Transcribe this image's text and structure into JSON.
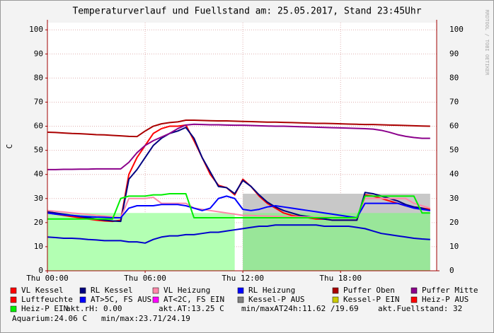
{
  "chart_data": {
    "type": "line",
    "title": "Temperaturverlauf und Fuellstand am: 25.05.2017, Stand 23:45Uhr",
    "y_label": "C",
    "watermark": "RRDTOOL / TOBI OETIKER",
    "xlim": [
      0,
      23.9
    ],
    "ylim": [
      0,
      103
    ],
    "xticks": [
      {
        "value": 0,
        "label": "Thu 00:00"
      },
      {
        "value": 6,
        "label": "Thu 06:00"
      },
      {
        "value": 12,
        "label": "Thu 12:00"
      },
      {
        "value": 18,
        "label": "Thu 18:00"
      }
    ],
    "yticks": [
      0,
      10,
      20,
      30,
      40,
      50,
      60,
      70,
      80,
      90,
      100
    ],
    "grid": true,
    "x": [
      0,
      0.5,
      1,
      1.5,
      2,
      2.5,
      3,
      3.5,
      4,
      4.5,
      5,
      5.5,
      6,
      6.5,
      7,
      7.5,
      8,
      8.5,
      9,
      9.5,
      10,
      10.5,
      11,
      11.5,
      12,
      12.5,
      13,
      13.5,
      14,
      14.5,
      15,
      15.5,
      16,
      16.5,
      17,
      17.5,
      18,
      18.5,
      19,
      19.5,
      20,
      20.5,
      21,
      21.5,
      22,
      22.5,
      23,
      23.5
    ],
    "series": [
      {
        "name": "VL Kessel",
        "color": "#ff0000",
        "values": [
          24,
          23.5,
          23,
          22.5,
          22,
          21.5,
          21,
          20.7,
          20.5,
          21,
          40,
          47,
          52,
          57,
          59,
          60,
          60,
          60.5,
          54,
          47,
          40,
          35.5,
          34.5,
          31.5,
          38,
          35,
          31,
          28,
          26,
          24,
          23,
          22.5,
          22,
          21.5,
          21.5,
          21,
          21,
          21,
          21,
          31.5,
          31,
          30,
          29,
          28,
          27,
          26.5,
          26,
          25.5
        ]
      },
      {
        "name": "RL Kessel",
        "color": "#000080",
        "values": [
          24.5,
          24,
          23.5,
          23,
          22.5,
          22,
          21.5,
          21,
          20.7,
          20.5,
          38,
          42,
          47,
          52,
          55,
          57,
          58,
          59.5,
          55,
          47,
          41,
          35,
          34.5,
          32,
          37.5,
          35,
          31.5,
          28.5,
          26.5,
          25,
          24,
          23,
          22.5,
          22,
          21.5,
          21,
          21,
          21,
          21,
          32.5,
          32,
          31,
          30,
          29,
          27.5,
          26.5,
          26,
          25
        ]
      },
      {
        "name": "VL Heizung",
        "color": "#ff88aa",
        "values": [
          25,
          24.7,
          24.4,
          24,
          23.7,
          23.4,
          23,
          22.7,
          22.4,
          22,
          30,
          30,
          30,
          30.5,
          28,
          28,
          28,
          28,
          26,
          25.5,
          25,
          24.5,
          24,
          23.5,
          23,
          23,
          22.8,
          22.7,
          22.6,
          22.5,
          22.5,
          22.4,
          22.3,
          22.2,
          22.2,
          22.1,
          22.1,
          22,
          22,
          30,
          30,
          30,
          30,
          30,
          30,
          28,
          27,
          26
        ]
      },
      {
        "name": "RL Heizung",
        "color": "#0000ff",
        "values": [
          24,
          23.5,
          23.2,
          23,
          22.7,
          22.5,
          22.3,
          22.2,
          22,
          22,
          26,
          27,
          27,
          27,
          27.5,
          27.5,
          27.5,
          27,
          26,
          25,
          26,
          30,
          31,
          30,
          25.5,
          25,
          25.5,
          26.5,
          27,
          26.5,
          26,
          25.5,
          25,
          24.5,
          24,
          23.5,
          23,
          22.5,
          22,
          28,
          28,
          28,
          28,
          28,
          27,
          26,
          25.5,
          25
        ]
      },
      {
        "name": "Puffer Oben",
        "color": "#aa0000",
        "values": [
          57.5,
          57.4,
          57.2,
          57,
          56.9,
          56.7,
          56.5,
          56.4,
          56.2,
          56,
          55.8,
          55.7,
          58,
          60,
          61,
          61.5,
          61.8,
          62.5,
          62.5,
          62.4,
          62.3,
          62.2,
          62.2,
          62.1,
          62,
          61.9,
          61.8,
          61.7,
          61.7,
          61.6,
          61.5,
          61.4,
          61.3,
          61.2,
          61.2,
          61.1,
          61,
          60.9,
          60.8,
          60.7,
          60.7,
          60.6,
          60.5,
          60.4,
          60.3,
          60.2,
          60.1,
          60.0
        ]
      },
      {
        "name": "Puffer Mitte",
        "color": "#8b008b",
        "values": [
          42,
          42,
          42.1,
          42.1,
          42.2,
          42.2,
          42.3,
          42.3,
          42.3,
          42.3,
          45,
          49,
          52,
          54,
          55.5,
          57,
          59,
          60.5,
          60.8,
          60.7,
          60.6,
          60.6,
          60.5,
          60.4,
          60.4,
          60.3,
          60.2,
          60.1,
          60,
          60,
          59.9,
          59.8,
          59.7,
          59.6,
          59.5,
          59.4,
          59.3,
          59.2,
          59.1,
          59,
          58.8,
          58.3,
          57.5,
          56.5,
          55.8,
          55.3,
          55,
          55
        ]
      },
      {
        "name": "Luftfeuchte",
        "color": "#ff0000"
      },
      {
        "name": "AT>5C, FS AUS",
        "color": "#0000ff"
      },
      {
        "name": "AT<2C, FS EIN",
        "color": "#ff00ff"
      },
      {
        "name": "Kessel-P AUS",
        "color": "#808080"
      },
      {
        "name": "Kessel-P EIN",
        "color": "#cccc00"
      },
      {
        "name": "Heiz-P AUS",
        "color": "#ff0000"
      },
      {
        "name": "Heiz-P EIN",
        "color": "#00ee00",
        "values": [
          21.5,
          21.5,
          21.5,
          21.5,
          21.5,
          21.5,
          21.5,
          21.5,
          21.5,
          30,
          31,
          31,
          31,
          31.5,
          31.5,
          32,
          32,
          32,
          22,
          22,
          22,
          22,
          22,
          22,
          22,
          22,
          22,
          22,
          22,
          22,
          22,
          22,
          22,
          22,
          22,
          22,
          22,
          22,
          22,
          31,
          31,
          31,
          31,
          31,
          31,
          31,
          24,
          24
        ]
      },
      {
        "color": "#0000cc",
        "values": [
          14,
          13.8,
          13.5,
          13.5,
          13.3,
          13,
          12.8,
          12.5,
          12.5,
          12.5,
          12,
          12,
          11.5,
          13,
          14,
          14.5,
          14.5,
          15,
          15,
          15.5,
          16,
          16,
          16.5,
          17,
          17.5,
          18,
          18.5,
          18.5,
          19,
          19,
          19,
          19,
          19,
          19,
          18.5,
          18.5,
          18.5,
          18.5,
          18,
          17.5,
          16.5,
          15.5,
          15,
          14.5,
          14,
          13.5,
          13.2,
          13
        ]
      },
      {
        "style": "area",
        "color": "#c8c8c8",
        "values": [
          null,
          null,
          null,
          null,
          null,
          null,
          null,
          null,
          null,
          null,
          null,
          null,
          null,
          null,
          null,
          null,
          null,
          null,
          null,
          null,
          null,
          null,
          null,
          null,
          32,
          32,
          32,
          32,
          32,
          32,
          32,
          32,
          32,
          32,
          32,
          32,
          32,
          32,
          32,
          32,
          32,
          32,
          32,
          32,
          32,
          32,
          32,
          32
        ]
      },
      {
        "style": "area",
        "color": "#b3ffb3",
        "values": [
          24,
          24,
          24,
          24,
          24,
          24,
          24,
          24,
          24,
          24,
          24,
          24,
          24,
          24,
          24,
          24,
          24,
          24,
          24,
          24,
          24,
          24,
          24,
          24,
          null,
          null,
          null,
          null,
          null,
          null,
          null,
          null,
          null,
          null,
          null,
          null,
          null,
          null,
          null,
          null,
          null,
          null,
          null,
          null,
          null,
          null,
          null,
          null
        ]
      },
      {
        "style": "area",
        "color": "#99e699",
        "values": [
          null,
          null,
          null,
          null,
          null,
          null,
          null,
          null,
          null,
          null,
          null,
          null,
          null,
          null,
          null,
          null,
          null,
          null,
          null,
          null,
          null,
          null,
          null,
          null,
          24,
          24,
          24,
          24,
          24,
          24,
          24,
          24,
          24,
          24,
          24,
          24,
          24,
          24,
          24,
          24,
          24,
          24,
          24,
          24,
          24,
          24,
          24,
          24
        ]
      }
    ],
    "notes": [
      "akt.rH: 0.00",
      "akt.AT:13.25 C",
      "min/maxAT24h:11.62 /19.69",
      "akt.Fuellstand:    32",
      "Aquarium:24.06 C",
      "min/max:23.71/24.19"
    ]
  }
}
